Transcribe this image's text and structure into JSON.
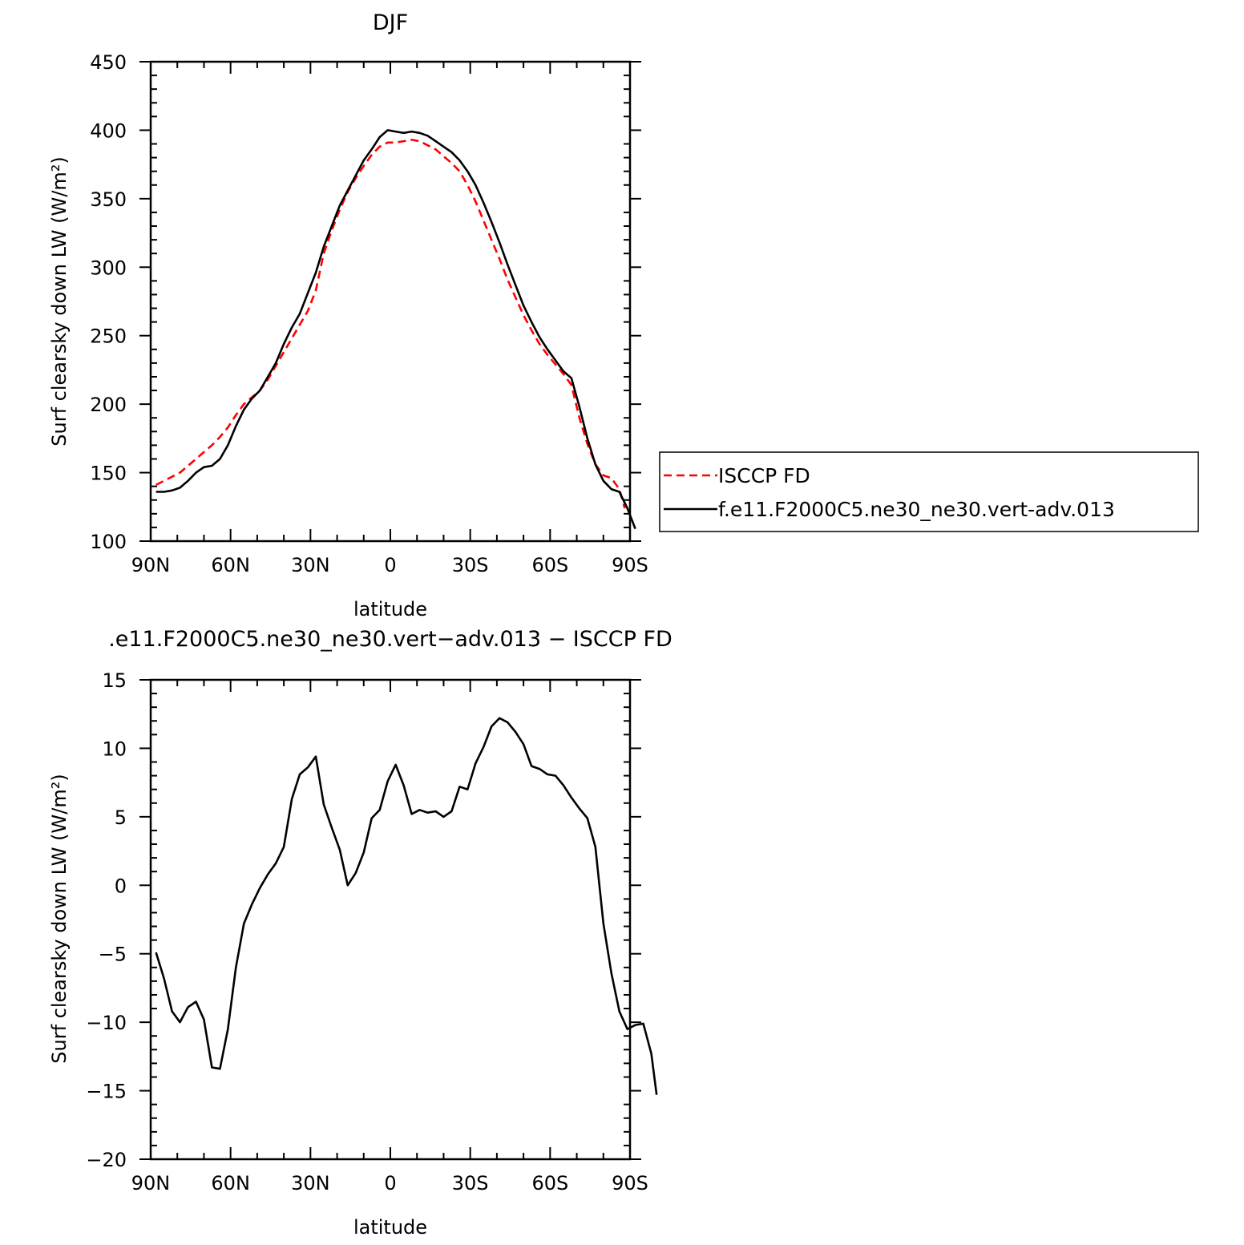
{
  "chart_data": [
    {
      "type": "line",
      "title": "DJF",
      "xlabel": "latitude",
      "ylabel": "Surf clearsky down LW (W/m²)",
      "xlim": [
        90,
        -90
      ],
      "ylim": [
        100,
        450
      ],
      "x_ticks": [
        90,
        60,
        30,
        0,
        -30,
        -60,
        -90
      ],
      "x_tick_labels": [
        "90N",
        "60N",
        "30N",
        "0",
        "30S",
        "60S",
        "90S"
      ],
      "y_ticks": [
        100,
        150,
        200,
        250,
        300,
        350,
        400,
        450
      ],
      "y_tick_labels": [
        "100",
        "150",
        "200",
        "250",
        "300",
        "350",
        "400",
        "450"
      ],
      "legend": {
        "placement": "right"
      },
      "series": [
        {
          "name": "ISCCP FD",
          "color": "#ff0000",
          "dash": "dashed",
          "points": [
            [
              88,
              141
            ],
            [
              85,
              144
            ],
            [
              82,
              147
            ],
            [
              79,
              150
            ],
            [
              76,
              155
            ],
            [
              73,
              160
            ],
            [
              70,
              165
            ],
            [
              67,
              170
            ],
            [
              64,
              176
            ],
            [
              61,
              183
            ],
            [
              58,
              192
            ],
            [
              55,
              200
            ],
            [
              52,
              205
            ],
            [
              49,
              210
            ],
            [
              46,
              218
            ],
            [
              43,
              228
            ],
            [
              40,
              238
            ],
            [
              37,
              248
            ],
            [
              34,
              258
            ],
            [
              31,
              268
            ],
            [
              28,
              283
            ],
            [
              25,
              310
            ],
            [
              22,
              327
            ],
            [
              19,
              342
            ],
            [
              16,
              355
            ],
            [
              13,
              365
            ],
            [
              10,
              374
            ],
            [
              7,
              382
            ],
            [
              4,
              388
            ],
            [
              1,
              391
            ],
            [
              -2,
              391
            ],
            [
              -5,
              392
            ],
            [
              -8,
              393
            ],
            [
              -11,
              392
            ],
            [
              -14,
              389
            ],
            [
              -17,
              386
            ],
            [
              -20,
              381
            ],
            [
              -23,
              376
            ],
            [
              -26,
              370
            ],
            [
              -29,
              360
            ],
            [
              -32,
              348
            ],
            [
              -35,
              334
            ],
            [
              -38,
              320
            ],
            [
              -41,
              306
            ],
            [
              -44,
              291
            ],
            [
              -47,
              278
            ],
            [
              -50,
              265
            ],
            [
              -53,
              254
            ],
            [
              -56,
              244
            ],
            [
              -59,
              236
            ],
            [
              -62,
              229
            ],
            [
              -65,
              222
            ],
            [
              -68,
              214
            ],
            [
              -71,
              190
            ],
            [
              -74,
              171
            ],
            [
              -77,
              156
            ],
            [
              -80,
              148
            ],
            [
              -83,
              146
            ],
            [
              -86,
              138
            ],
            [
              -88,
              124
            ]
          ]
        },
        {
          "name": "f.e11.F2000C5.ne30_ne30.vert-adv.013",
          "color": "#000000",
          "dash": "solid",
          "points": [
            [
              88,
              136
            ],
            [
              85,
              136
            ],
            [
              82,
              137
            ],
            [
              79,
              139
            ],
            [
              76,
              144
            ],
            [
              73,
              150
            ],
            [
              70,
              154
            ],
            [
              67,
              155
            ],
            [
              64,
              160
            ],
            [
              61,
              170
            ],
            [
              58,
              184
            ],
            [
              55,
              196
            ],
            [
              52,
              204
            ],
            [
              49,
              210
            ],
            [
              46,
              220
            ],
            [
              43,
              230
            ],
            [
              40,
              244
            ],
            [
              37,
              256
            ],
            [
              34,
              266
            ],
            [
              31,
              281
            ],
            [
              28,
              296
            ],
            [
              25,
              315
            ],
            [
              22,
              330
            ],
            [
              19,
              345
            ],
            [
              16,
              356
            ],
            [
              13,
              367
            ],
            [
              10,
              378
            ],
            [
              7,
              386
            ],
            [
              4,
              395
            ],
            [
              1,
              400
            ],
            [
              -2,
              399
            ],
            [
              -5,
              398
            ],
            [
              -8,
              399
            ],
            [
              -11,
              398
            ],
            [
              -14,
              396
            ],
            [
              -17,
              392
            ],
            [
              -20,
              388
            ],
            [
              -23,
              384
            ],
            [
              -26,
              378
            ],
            [
              -29,
              370
            ],
            [
              -32,
              360
            ],
            [
              -35,
              347
            ],
            [
              -38,
              333
            ],
            [
              -41,
              318
            ],
            [
              -44,
              302
            ],
            [
              -47,
              287
            ],
            [
              -50,
              272
            ],
            [
              -53,
              260
            ],
            [
              -56,
              249
            ],
            [
              -59,
              240
            ],
            [
              -62,
              232
            ],
            [
              -65,
              224
            ],
            [
              -68,
              219
            ],
            [
              -71,
              198
            ],
            [
              -74,
              175
            ],
            [
              -77,
              156
            ],
            [
              -80,
              144
            ],
            [
              -83,
              138
            ],
            [
              -86,
              136
            ],
            [
              -89,
              124
            ],
            [
              -92,
              109
            ]
          ]
        }
      ]
    },
    {
      "type": "line",
      "title": ".e11.F2000C5.ne30_ne30.vert−adv.013 − ISCCP FD",
      "xlabel": "latitude",
      "ylabel": "Surf clearsky down LW (W/m²)",
      "xlim": [
        90,
        -90
      ],
      "ylim": [
        -20,
        15
      ],
      "x_ticks": [
        90,
        60,
        30,
        0,
        -30,
        -60,
        -90
      ],
      "x_tick_labels": [
        "90N",
        "60N",
        "30N",
        "0",
        "30S",
        "60S",
        "90S"
      ],
      "y_ticks": [
        -20,
        -15,
        -10,
        -5,
        0,
        5,
        10,
        15
      ],
      "y_tick_labels": [
        "−20",
        "−15",
        "−10",
        "−5",
        "0",
        "5",
        "10",
        "15"
      ],
      "series": [
        {
          "color": "#000000",
          "dash": "solid",
          "points": [
            [
              88,
              -4.9
            ],
            [
              85,
              -6.8
            ],
            [
              82,
              -9.2
            ],
            [
              79,
              -10.0
            ],
            [
              76,
              -8.9
            ],
            [
              73,
              -8.5
            ],
            [
              70,
              -9.8
            ],
            [
              67,
              -13.3
            ],
            [
              64,
              -13.4
            ],
            [
              61,
              -10.5
            ],
            [
              58,
              -6.0
            ],
            [
              55,
              -2.8
            ],
            [
              52,
              -1.4
            ],
            [
              49,
              -0.2
            ],
            [
              46,
              0.8
            ],
            [
              43,
              1.6
            ],
            [
              40,
              2.8
            ],
            [
              37,
              6.3
            ],
            [
              34,
              8.1
            ],
            [
              31,
              8.6
            ],
            [
              28,
              9.4
            ],
            [
              25,
              5.9
            ],
            [
              22,
              4.2
            ],
            [
              19,
              2.6
            ],
            [
              16,
              0.0
            ],
            [
              13,
              0.9
            ],
            [
              10,
              2.4
            ],
            [
              7,
              4.9
            ],
            [
              4,
              5.5
            ],
            [
              1,
              7.6
            ],
            [
              -2,
              8.8
            ],
            [
              -5,
              7.3
            ],
            [
              -8,
              5.2
            ],
            [
              -11,
              5.5
            ],
            [
              -14,
              5.3
            ],
            [
              -17,
              5.4
            ],
            [
              -20,
              5.0
            ],
            [
              -23,
              5.4
            ],
            [
              -26,
              7.2
            ],
            [
              -29,
              7.0
            ],
            [
              -32,
              8.9
            ],
            [
              -35,
              10.1
            ],
            [
              -38,
              11.6
            ],
            [
              -41,
              12.2
            ],
            [
              -44,
              11.9
            ],
            [
              -47,
              11.2
            ],
            [
              -50,
              10.3
            ],
            [
              -53,
              8.7
            ],
            [
              -56,
              8.5
            ],
            [
              -59,
              8.1
            ],
            [
              -62,
              8.0
            ],
            [
              -65,
              7.3
            ],
            [
              -68,
              6.4
            ],
            [
              -71,
              5.6
            ],
            [
              -74,
              4.9
            ],
            [
              -77,
              2.8
            ],
            [
              -80,
              -2.8
            ],
            [
              -83,
              -6.4
            ],
            [
              -86,
              -9.2
            ],
            [
              -89,
              -10.5
            ],
            [
              -92,
              -10.2
            ],
            [
              -95,
              -10.1
            ],
            [
              -98,
              -12.3
            ],
            [
              -100,
              -15.3
            ]
          ]
        }
      ]
    }
  ]
}
